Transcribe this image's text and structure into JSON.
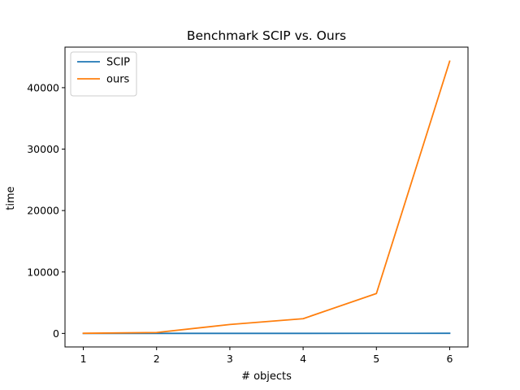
{
  "chart_data": {
    "type": "line",
    "title": "Benchmark SCIP vs. Ours",
    "xlabel": "# objects",
    "ylabel": "time",
    "x": [
      1,
      2,
      3,
      4,
      5,
      6
    ],
    "xticks": [
      1,
      2,
      3,
      4,
      5,
      6
    ],
    "yticks": [
      0,
      10000,
      20000,
      30000,
      40000
    ],
    "xlim": [
      0.75,
      6.25
    ],
    "ylim": [
      -2200,
      46600
    ],
    "grid": false,
    "legend_position": "top-left",
    "series": [
      {
        "name": "SCIP",
        "color": "#1f77b4",
        "values": [
          2,
          4,
          6,
          8,
          12,
          20
        ]
      },
      {
        "name": "ours",
        "color": "#ff7f0e",
        "values": [
          20,
          150,
          1450,
          2400,
          6500,
          44300
        ]
      }
    ]
  }
}
